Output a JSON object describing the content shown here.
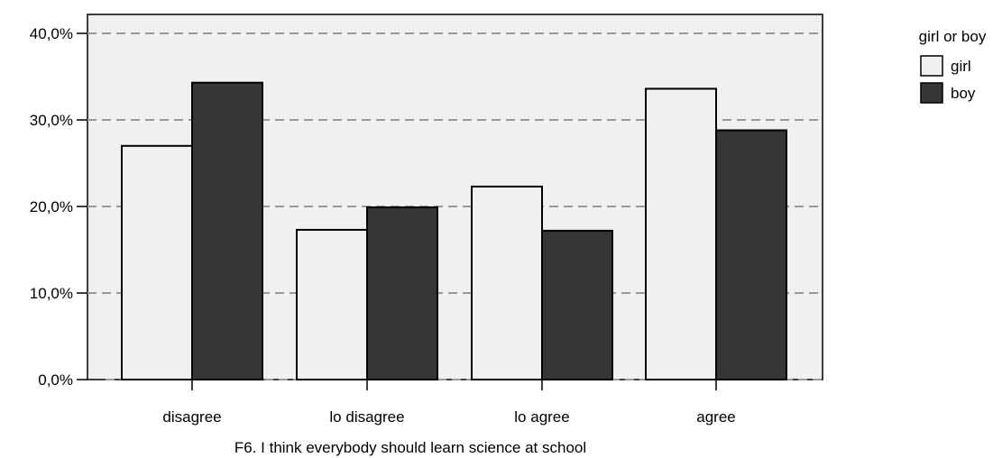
{
  "chart_data": {
    "type": "bar",
    "categories": [
      "disagree",
      "lo disagree",
      "lo agree",
      "agree"
    ],
    "series": [
      {
        "name": "girl",
        "values": [
          27.0,
          17.3,
          22.3,
          33.6
        ],
        "color": "#f0f0f0"
      },
      {
        "name": "boy",
        "values": [
          34.3,
          19.9,
          17.2,
          28.8
        ],
        "color": "#363636"
      }
    ],
    "title": "",
    "xlabel": "F6. I think everybody should learn science at school",
    "ylabel": "",
    "ylim": [
      0,
      44
    ],
    "yticks": [
      0,
      10,
      20,
      30,
      40
    ],
    "ytick_labels": [
      "0,0%",
      "10,0%",
      "20,0%",
      "30,0%",
      "40,0%"
    ],
    "grid": true,
    "plot_background": "#f0f0f0",
    "legend": {
      "title": "girl or boy",
      "placement": "right"
    }
  }
}
